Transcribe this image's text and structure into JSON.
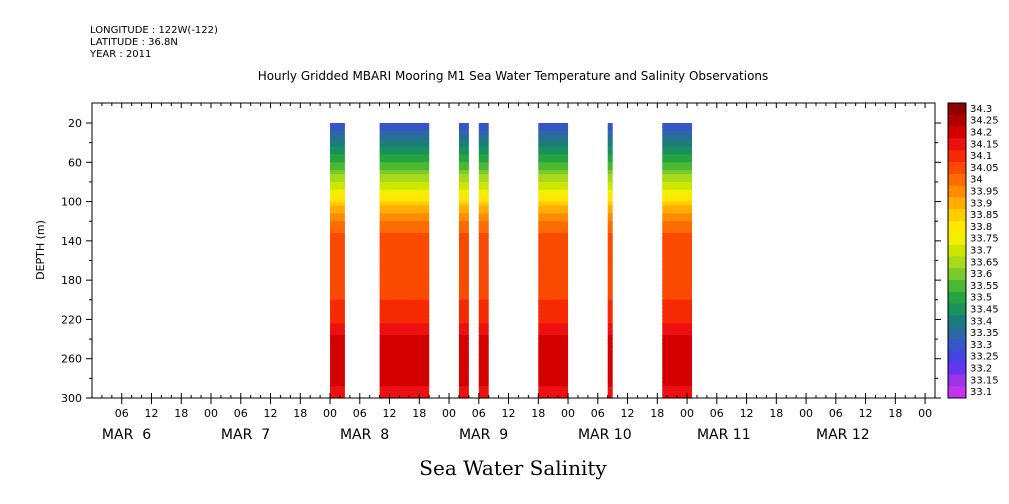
{
  "header": {
    "longitude_line": "LONGITUDE : 122W(-122)",
    "latitude_line": "LATITUDE : 36.8N",
    "year_line": "YEAR : 2011"
  },
  "chart_data": {
    "type": "heatmap",
    "title": "Hourly Gridded MBARI Mooring M1 Sea Water Temperature and Salinity Observations",
    "xlabel": "Sea Water Salinity",
    "ylabel": "DEPTH (m)",
    "y_ticks": [
      "20",
      "60",
      "100",
      "140",
      "180",
      "220",
      "260",
      "300"
    ],
    "ylim": [
      300,
      20
    ],
    "x_hour_ticks": [
      "06",
      "12",
      "18",
      "00",
      "06",
      "12",
      "18",
      "00",
      "06",
      "12",
      "18",
      "00",
      "06",
      "12",
      "18",
      "00",
      "06",
      "12",
      "18",
      "00",
      "06",
      "12",
      "18",
      "00",
      "06",
      "12",
      "18",
      "00",
      "06",
      "12",
      "18",
      "00"
    ],
    "x_day_labels": [
      "MAR  6",
      "MAR  7",
      "MAR  8",
      "MAR  9",
      "MAR 10",
      "MAR 11",
      "MAR 12"
    ],
    "xlim_hours_from_mar6_00": [
      0,
      170
    ],
    "colorbar_levels": [
      "34.3",
      "34.25",
      "34.2",
      "34.15",
      "34.1",
      "34.05",
      "34",
      "33.95",
      "33.9",
      "33.85",
      "33.8",
      "33.75",
      "33.7",
      "33.65",
      "33.6",
      "33.55",
      "33.5",
      "33.45",
      "33.4",
      "33.35",
      "33.3",
      "33.25",
      "33.2",
      "33.15",
      "33.1"
    ],
    "colorbar_colors": [
      "#8f0000",
      "#b00000",
      "#d40000",
      "#ee1010",
      "#f52a00",
      "#fa4a00",
      "#fd6a00",
      "#ff8c00",
      "#ffad00",
      "#ffcc00",
      "#ffe800",
      "#f0f000",
      "#cce600",
      "#a6da1a",
      "#7acb2a",
      "#4bb833",
      "#25a542",
      "#19915c",
      "#1d7b7e",
      "#2a6aa0",
      "#3555c8",
      "#4444e0",
      "#6633ee",
      "#9b33e8",
      "#c433f0"
    ],
    "profile_depths_m": [
      20,
      30,
      45,
      60,
      70,
      80,
      90,
      100,
      110,
      120,
      130,
      140,
      160,
      200,
      215,
      230,
      240,
      260,
      285,
      300
    ],
    "profile_salinity": [
      33.3,
      33.37,
      33.45,
      33.55,
      33.62,
      33.7,
      33.78,
      33.86,
      33.93,
      33.99,
      34.04,
      34.07,
      34.09,
      34.1,
      34.13,
      34.17,
      34.21,
      34.25,
      34.22,
      34.16
    ],
    "data_segments": [
      {
        "start_hours": 48,
        "end_hours": 51,
        "note": "data present"
      },
      {
        "start_hours": 58,
        "end_hours": 68
      },
      {
        "start_hours": 74,
        "end_hours": 76
      },
      {
        "start_hours": 78,
        "end_hours": 80
      },
      {
        "start_hours": 90,
        "end_hours": 96
      },
      {
        "start_hours": 104,
        "end_hours": 105
      },
      {
        "start_hours": 115,
        "end_hours": 121
      }
    ]
  }
}
